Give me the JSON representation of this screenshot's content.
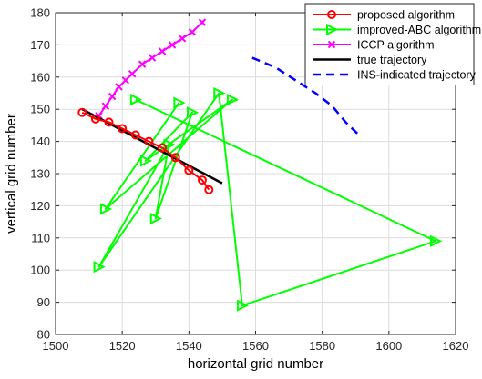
{
  "chart_data": {
    "type": "line",
    "title": "",
    "xlabel": "horizontal grid number",
    "ylabel": "vertical grid number",
    "xlim": [
      1500,
      1620
    ],
    "ylim": [
      80,
      180
    ],
    "xticks": [
      "1500",
      "1520",
      "1540",
      "1560",
      "1580",
      "1600",
      "1620"
    ],
    "yticks": [
      "80",
      "90",
      "100",
      "110",
      "120",
      "130",
      "140",
      "150",
      "160",
      "170",
      "180"
    ],
    "grid": true,
    "legend_position": "top-right",
    "series": [
      {
        "name": "proposed algorithm",
        "color": "#ff0000",
        "marker": "circle",
        "line_style": "solid",
        "x": [
          1508,
          1512,
          1516,
          1520,
          1524,
          1528,
          1532,
          1536,
          1540,
          1544,
          1546
        ],
        "y": [
          149,
          147,
          146,
          144,
          142,
          140,
          138,
          135,
          131,
          128,
          125
        ]
      },
      {
        "name": "improved-ABC algorithm",
        "color": "#00ff00",
        "marker": "triangle-right",
        "line_style": "solid",
        "x": [
          1524,
          1614,
          1556,
          1549,
          1513,
          1534,
          1530,
          1541,
          1527,
          1553,
          1515,
          1537
        ],
        "y": [
          153,
          109,
          89,
          155,
          101,
          139,
          116,
          149,
          134,
          153,
          119,
          152
        ]
      },
      {
        "name": "ICCP algorithm",
        "color": "#ff00ff",
        "marker": "x",
        "line_style": "solid",
        "x": [
          1513,
          1515,
          1517,
          1519,
          1521,
          1523,
          1526,
          1529,
          1532,
          1535,
          1538,
          1541,
          1544
        ],
        "y": [
          148,
          151,
          154,
          157,
          159,
          161,
          164,
          166,
          168,
          170,
          172,
          174,
          177
        ]
      },
      {
        "name": "true trajectory",
        "color": "#000000",
        "marker": "none",
        "line_style": "solid",
        "x": [
          1508,
          1550
        ],
        "y": [
          150,
          127
        ]
      },
      {
        "name": "INS-indicated trajectory",
        "color": "#0000ff",
        "marker": "none",
        "line_style": "dashed",
        "x": [
          1559,
          1566,
          1572,
          1578,
          1583,
          1587,
          1591
        ],
        "y": [
          166,
          163,
          159,
          155,
          151,
          146,
          142
        ]
      }
    ]
  }
}
